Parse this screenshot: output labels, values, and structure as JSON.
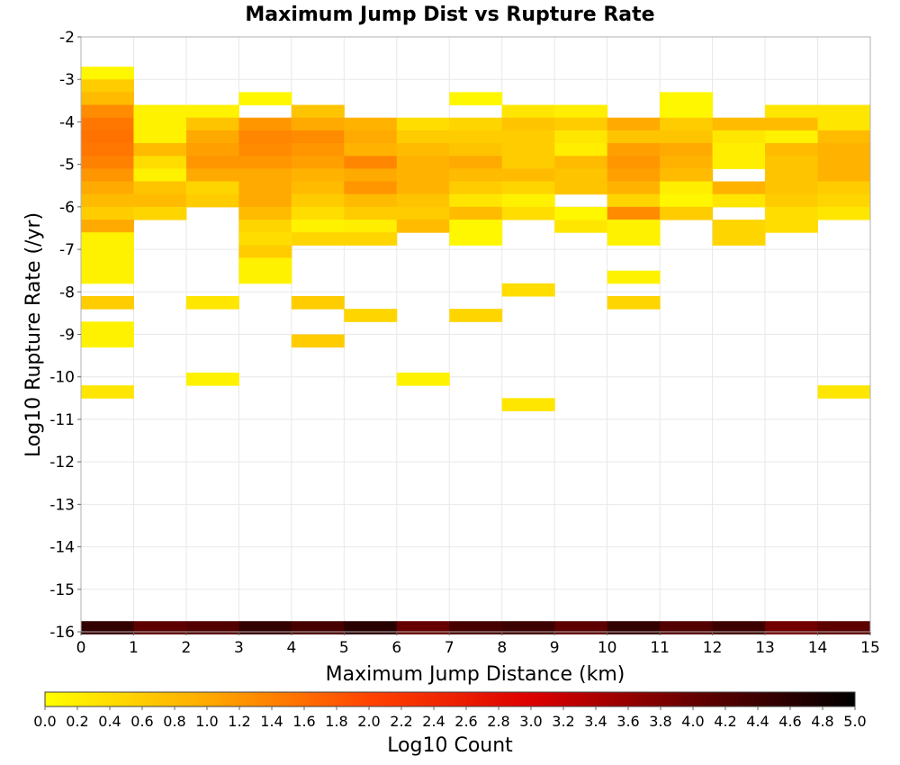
{
  "chart_data": {
    "type": "heatmap",
    "title": "Maximum Jump Dist vs Rupture Rate",
    "xlabel": "Maximum Jump Distance (km)",
    "ylabel": "Log10 Rupture Rate (/yr)",
    "xlim": [
      0,
      15
    ],
    "ylim": [
      -16,
      -2
    ],
    "x_ticks": [
      "0",
      "1",
      "2",
      "3",
      "4",
      "5",
      "6",
      "7",
      "8",
      "9",
      "10",
      "11",
      "12",
      "13",
      "14",
      "15"
    ],
    "y_ticks": [
      "-2",
      "-3",
      "-4",
      "-5",
      "-6",
      "-7",
      "-8",
      "-9",
      "-10",
      "-11",
      "-12",
      "-13",
      "-14",
      "-15",
      "-16"
    ],
    "grid": true,
    "bin_size": {
      "x": 1,
      "y": 0.3
    },
    "colorbar": {
      "label": "Log10 Count",
      "range": [
        0,
        5
      ],
      "tick_labels": [
        "0.0",
        "0.2",
        "0.4",
        "0.6",
        "0.8",
        "1.0",
        "1.2",
        "1.4",
        "1.6",
        "1.8",
        "2.0",
        "2.2",
        "2.4",
        "2.6",
        "2.8",
        "3.0",
        "3.2",
        "3.4",
        "3.6",
        "3.8",
        "4.0",
        "4.2",
        "4.4",
        "4.6",
        "4.8",
        "5.0"
      ],
      "colors": [
        "#ffff00",
        "#ffaa00",
        "#ff4400",
        "#dd0000",
        "#660000",
        "#000000"
      ]
    },
    "cells": [
      {
        "x": 0,
        "y": -2.85,
        "v": 0.1
      },
      {
        "x": 0,
        "y": -3.15,
        "v": 0.6
      },
      {
        "x": 0,
        "y": -3.45,
        "v": 0.8
      },
      {
        "x": 0,
        "y": -3.75,
        "v": 1.3
      },
      {
        "x": 0,
        "y": -4.05,
        "v": 1.5
      },
      {
        "x": 0,
        "y": -4.35,
        "v": 1.55
      },
      {
        "x": 0,
        "y": -4.65,
        "v": 1.5
      },
      {
        "x": 0,
        "y": -4.95,
        "v": 1.4
      },
      {
        "x": 0,
        "y": -5.25,
        "v": 1.2
      },
      {
        "x": 0,
        "y": -5.55,
        "v": 1.0
      },
      {
        "x": 0,
        "y": -5.85,
        "v": 0.8
      },
      {
        "x": 0,
        "y": -6.15,
        "v": 0.6
      },
      {
        "x": 0,
        "y": -6.45,
        "v": 1.0
      },
      {
        "x": 0,
        "y": -6.75,
        "v": 0.15
      },
      {
        "x": 0,
        "y": -7.05,
        "v": 0.15
      },
      {
        "x": 0,
        "y": -7.35,
        "v": 0.15
      },
      {
        "x": 0,
        "y": -7.65,
        "v": 0.15
      },
      {
        "x": 0,
        "y": -8.25,
        "v": 0.6
      },
      {
        "x": 0,
        "y": -8.85,
        "v": 0.15
      },
      {
        "x": 0,
        "y": -9.15,
        "v": 0.15
      },
      {
        "x": 0,
        "y": -10.35,
        "v": 0.3
      },
      {
        "x": 1,
        "y": -3.75,
        "v": 0.15
      },
      {
        "x": 1,
        "y": -4.05,
        "v": 0.15
      },
      {
        "x": 1,
        "y": -4.35,
        "v": 0.15
      },
      {
        "x": 1,
        "y": -4.65,
        "v": 0.8
      },
      {
        "x": 1,
        "y": -4.95,
        "v": 0.4
      },
      {
        "x": 1,
        "y": -5.25,
        "v": 0.15
      },
      {
        "x": 1,
        "y": -5.55,
        "v": 0.7
      },
      {
        "x": 1,
        "y": -5.85,
        "v": 0.8
      },
      {
        "x": 1,
        "y": -6.15,
        "v": 0.5
      },
      {
        "x": 2,
        "y": -3.75,
        "v": 0.15
      },
      {
        "x": 2,
        "y": -4.05,
        "v": 0.7
      },
      {
        "x": 2,
        "y": -4.35,
        "v": 1.0
      },
      {
        "x": 2,
        "y": -4.65,
        "v": 1.1
      },
      {
        "x": 2,
        "y": -4.95,
        "v": 1.2
      },
      {
        "x": 2,
        "y": -5.25,
        "v": 1.0
      },
      {
        "x": 2,
        "y": -5.55,
        "v": 0.5
      },
      {
        "x": 2,
        "y": -5.85,
        "v": 0.6
      },
      {
        "x": 2,
        "y": -8.25,
        "v": 0.3
      },
      {
        "x": 2,
        "y": -10.05,
        "v": 0.15
      },
      {
        "x": 3,
        "y": -3.45,
        "v": 0.1
      },
      {
        "x": 3,
        "y": -4.05,
        "v": 1.2
      },
      {
        "x": 3,
        "y": -4.35,
        "v": 1.35
      },
      {
        "x": 3,
        "y": -4.65,
        "v": 1.3
      },
      {
        "x": 3,
        "y": -4.95,
        "v": 1.2
      },
      {
        "x": 3,
        "y": -5.25,
        "v": 1.0
      },
      {
        "x": 3,
        "y": -5.55,
        "v": 1.0
      },
      {
        "x": 3,
        "y": -5.85,
        "v": 1.0
      },
      {
        "x": 3,
        "y": -6.15,
        "v": 0.8
      },
      {
        "x": 3,
        "y": -6.45,
        "v": 0.5
      },
      {
        "x": 3,
        "y": -6.75,
        "v": 0.4
      },
      {
        "x": 3,
        "y": -7.05,
        "v": 0.6
      },
      {
        "x": 3,
        "y": -7.35,
        "v": 0.15
      },
      {
        "x": 3,
        "y": -7.65,
        "v": 0.15
      },
      {
        "x": 4,
        "y": -3.75,
        "v": 0.7
      },
      {
        "x": 4,
        "y": -4.05,
        "v": 1.0
      },
      {
        "x": 4,
        "y": -4.35,
        "v": 1.3
      },
      {
        "x": 4,
        "y": -4.65,
        "v": 1.2
      },
      {
        "x": 4,
        "y": -4.95,
        "v": 1.1
      },
      {
        "x": 4,
        "y": -5.25,
        "v": 0.9
      },
      {
        "x": 4,
        "y": -5.55,
        "v": 0.8
      },
      {
        "x": 4,
        "y": -5.85,
        "v": 0.6
      },
      {
        "x": 4,
        "y": -6.15,
        "v": 0.4
      },
      {
        "x": 4,
        "y": -6.45,
        "v": 0.15
      },
      {
        "x": 4,
        "y": -6.75,
        "v": 0.5
      },
      {
        "x": 4,
        "y": -8.25,
        "v": 0.6
      },
      {
        "x": 4,
        "y": -9.15,
        "v": 0.6
      },
      {
        "x": 5,
        "y": -4.05,
        "v": 0.9
      },
      {
        "x": 5,
        "y": -4.35,
        "v": 1.0
      },
      {
        "x": 5,
        "y": -4.65,
        "v": 0.9
      },
      {
        "x": 5,
        "y": -4.95,
        "v": 1.35
      },
      {
        "x": 5,
        "y": -5.25,
        "v": 1.0
      },
      {
        "x": 5,
        "y": -5.55,
        "v": 1.2
      },
      {
        "x": 5,
        "y": -5.85,
        "v": 0.8
      },
      {
        "x": 5,
        "y": -6.15,
        "v": 0.6
      },
      {
        "x": 5,
        "y": -6.45,
        "v": 0.2
      },
      {
        "x": 5,
        "y": -6.75,
        "v": 0.5
      },
      {
        "x": 5,
        "y": -8.55,
        "v": 0.5
      },
      {
        "x": 6,
        "y": -4.05,
        "v": 0.4
      },
      {
        "x": 6,
        "y": -4.35,
        "v": 0.6
      },
      {
        "x": 6,
        "y": -4.65,
        "v": 0.8
      },
      {
        "x": 6,
        "y": -4.95,
        "v": 0.9
      },
      {
        "x": 6,
        "y": -5.25,
        "v": 0.9
      },
      {
        "x": 6,
        "y": -5.55,
        "v": 0.9
      },
      {
        "x": 6,
        "y": -5.85,
        "v": 0.7
      },
      {
        "x": 6,
        "y": -6.15,
        "v": 0.6
      },
      {
        "x": 6,
        "y": -6.45,
        "v": 0.8
      },
      {
        "x": 6,
        "y": -10.05,
        "v": 0.15
      },
      {
        "x": 7,
        "y": -3.45,
        "v": 0.1
      },
      {
        "x": 7,
        "y": -4.05,
        "v": 0.5
      },
      {
        "x": 7,
        "y": -4.35,
        "v": 0.6
      },
      {
        "x": 7,
        "y": -4.65,
        "v": 0.7
      },
      {
        "x": 7,
        "y": -4.95,
        "v": 1.0
      },
      {
        "x": 7,
        "y": -5.25,
        "v": 0.8
      },
      {
        "x": 7,
        "y": -5.55,
        "v": 0.6
      },
      {
        "x": 7,
        "y": -5.85,
        "v": 0.3
      },
      {
        "x": 7,
        "y": -6.15,
        "v": 0.8
      },
      {
        "x": 7,
        "y": -6.45,
        "v": 0.1
      },
      {
        "x": 7,
        "y": -6.75,
        "v": 0.1
      },
      {
        "x": 7,
        "y": -8.55,
        "v": 0.5
      },
      {
        "x": 8,
        "y": -3.75,
        "v": 0.3
      },
      {
        "x": 8,
        "y": -4.05,
        "v": 0.7
      },
      {
        "x": 8,
        "y": -4.35,
        "v": 0.6
      },
      {
        "x": 8,
        "y": -4.65,
        "v": 0.6
      },
      {
        "x": 8,
        "y": -4.95,
        "v": 0.6
      },
      {
        "x": 8,
        "y": -5.25,
        "v": 0.8
      },
      {
        "x": 8,
        "y": -5.55,
        "v": 0.5
      },
      {
        "x": 8,
        "y": -5.85,
        "v": 0.15
      },
      {
        "x": 8,
        "y": -6.15,
        "v": 0.4
      },
      {
        "x": 8,
        "y": -7.95,
        "v": 0.4
      },
      {
        "x": 8,
        "y": -10.65,
        "v": 0.3
      },
      {
        "x": 9,
        "y": -3.75,
        "v": 0.2
      },
      {
        "x": 9,
        "y": -4.05,
        "v": 0.6
      },
      {
        "x": 9,
        "y": -4.35,
        "v": 0.3
      },
      {
        "x": 9,
        "y": -4.65,
        "v": 0.2
      },
      {
        "x": 9,
        "y": -4.95,
        "v": 0.8
      },
      {
        "x": 9,
        "y": -5.25,
        "v": 0.7
      },
      {
        "x": 9,
        "y": -5.55,
        "v": 0.7
      },
      {
        "x": 9,
        "y": -6.45,
        "v": 0.3
      },
      {
        "x": 9,
        "y": -6.15,
        "v": 0.1
      },
      {
        "x": 10,
        "y": -4.05,
        "v": 1.0
      },
      {
        "x": 10,
        "y": -4.35,
        "v": 0.7
      },
      {
        "x": 10,
        "y": -4.65,
        "v": 1.1
      },
      {
        "x": 10,
        "y": -4.95,
        "v": 1.2
      },
      {
        "x": 10,
        "y": -5.25,
        "v": 1.1
      },
      {
        "x": 10,
        "y": -5.55,
        "v": 0.9
      },
      {
        "x": 10,
        "y": -5.85,
        "v": 0.5
      },
      {
        "x": 10,
        "y": -6.15,
        "v": 1.3
      },
      {
        "x": 10,
        "y": -6.45,
        "v": 0.15
      },
      {
        "x": 10,
        "y": -6.75,
        "v": 0.15
      },
      {
        "x": 10,
        "y": -7.65,
        "v": 0.15
      },
      {
        "x": 10,
        "y": -8.25,
        "v": 0.5
      },
      {
        "x": 11,
        "y": -3.45,
        "v": 0.1
      },
      {
        "x": 11,
        "y": -3.75,
        "v": 0.1
      },
      {
        "x": 11,
        "y": -4.05,
        "v": 0.6
      },
      {
        "x": 11,
        "y": -4.35,
        "v": 0.7
      },
      {
        "x": 11,
        "y": -4.65,
        "v": 1.0
      },
      {
        "x": 11,
        "y": -4.95,
        "v": 0.9
      },
      {
        "x": 11,
        "y": -5.25,
        "v": 0.8
      },
      {
        "x": 11,
        "y": -5.55,
        "v": 0.2
      },
      {
        "x": 11,
        "y": -5.85,
        "v": 0.1
      },
      {
        "x": 11,
        "y": -6.15,
        "v": 0.6
      },
      {
        "x": 12,
        "y": -4.05,
        "v": 0.8
      },
      {
        "x": 12,
        "y": -4.35,
        "v": 0.3
      },
      {
        "x": 12,
        "y": -4.65,
        "v": 0.2
      },
      {
        "x": 12,
        "y": -4.95,
        "v": 0.2
      },
      {
        "x": 12,
        "y": -5.55,
        "v": 0.9
      },
      {
        "x": 12,
        "y": -5.85,
        "v": 0.3
      },
      {
        "x": 12,
        "y": -6.45,
        "v": 0.5
      },
      {
        "x": 12,
        "y": -6.75,
        "v": 0.5
      },
      {
        "x": 13,
        "y": -3.75,
        "v": 0.3
      },
      {
        "x": 13,
        "y": -4.05,
        "v": 0.8
      },
      {
        "x": 13,
        "y": -4.35,
        "v": 0.15
      },
      {
        "x": 13,
        "y": -4.65,
        "v": 0.8
      },
      {
        "x": 13,
        "y": -4.95,
        "v": 0.7
      },
      {
        "x": 13,
        "y": -5.25,
        "v": 0.7
      },
      {
        "x": 13,
        "y": -5.55,
        "v": 0.7
      },
      {
        "x": 13,
        "y": -5.85,
        "v": 0.6
      },
      {
        "x": 13,
        "y": -6.15,
        "v": 0.4
      },
      {
        "x": 13,
        "y": -6.45,
        "v": 0.4
      },
      {
        "x": 14,
        "y": -3.75,
        "v": 0.3
      },
      {
        "x": 14,
        "y": -4.05,
        "v": 0.3
      },
      {
        "x": 14,
        "y": -4.35,
        "v": 0.8
      },
      {
        "x": 14,
        "y": -4.65,
        "v": 0.9
      },
      {
        "x": 14,
        "y": -4.95,
        "v": 0.9
      },
      {
        "x": 14,
        "y": -5.25,
        "v": 0.9
      },
      {
        "x": 14,
        "y": -5.55,
        "v": 0.6
      },
      {
        "x": 14,
        "y": -5.85,
        "v": 0.5
      },
      {
        "x": 14,
        "y": -6.15,
        "v": 0.3
      },
      {
        "x": 14,
        "y": -10.35,
        "v": 0.3
      },
      {
        "x": 0,
        "y": -15.9,
        "v": 4.5
      },
      {
        "x": 1,
        "y": -15.9,
        "v": 4.1
      },
      {
        "x": 2,
        "y": -15.9,
        "v": 4.2
      },
      {
        "x": 3,
        "y": -15.9,
        "v": 4.5
      },
      {
        "x": 4,
        "y": -15.9,
        "v": 4.3
      },
      {
        "x": 5,
        "y": -15.9,
        "v": 4.6
      },
      {
        "x": 6,
        "y": -15.9,
        "v": 4.0
      },
      {
        "x": 7,
        "y": -15.9,
        "v": 4.3
      },
      {
        "x": 8,
        "y": -15.9,
        "v": 4.4
      },
      {
        "x": 9,
        "y": -15.9,
        "v": 4.1
      },
      {
        "x": 10,
        "y": -15.9,
        "v": 4.5
      },
      {
        "x": 11,
        "y": -15.9,
        "v": 4.2
      },
      {
        "x": 12,
        "y": -15.9,
        "v": 4.4
      },
      {
        "x": 13,
        "y": -15.9,
        "v": 3.9
      },
      {
        "x": 14,
        "y": -15.9,
        "v": 4.1
      }
    ]
  }
}
